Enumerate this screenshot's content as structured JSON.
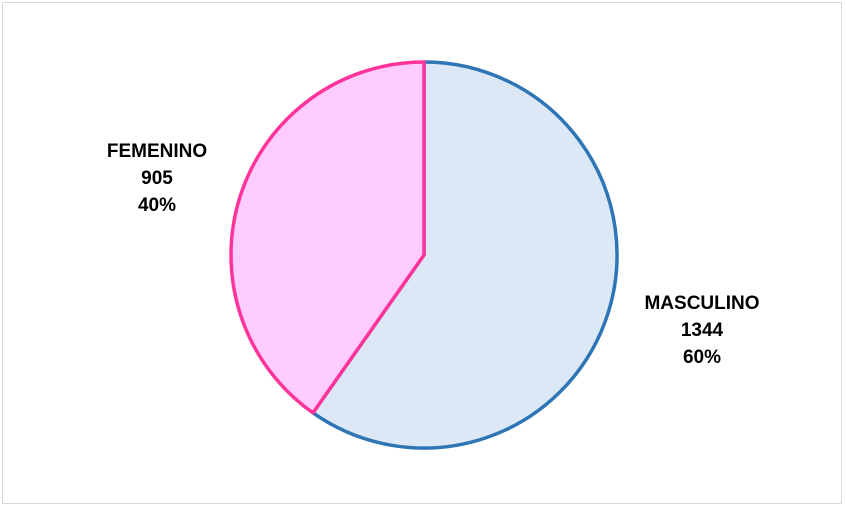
{
  "chart_data": {
    "type": "pie",
    "title": "",
    "slices": [
      {
        "label": "MASCULINO",
        "value": 1344,
        "percent": "60%",
        "fill": "#dce8f6",
        "stroke": "#2e75b6"
      },
      {
        "label": "FEMENINO",
        "value": 905,
        "percent": "40%",
        "fill": "#ffccff",
        "stroke": "#ff3399"
      }
    ],
    "start_angle_deg": 0,
    "direction": "clockwise"
  }
}
